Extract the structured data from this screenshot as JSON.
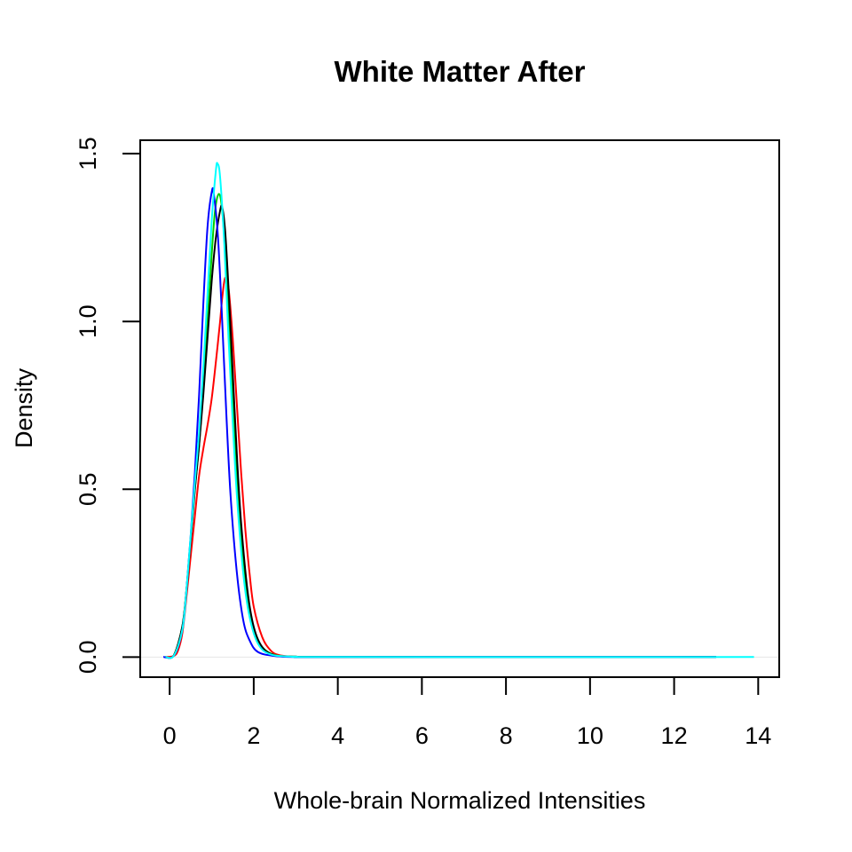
{
  "chart_data": {
    "type": "line",
    "title": "White Matter After",
    "xlabel": "Whole-brain Normalized Intensities",
    "ylabel": "Density",
    "xlim": [
      -0.7,
      14.5
    ],
    "ylim": [
      -0.06,
      1.54
    ],
    "xticks": [
      0,
      2,
      4,
      6,
      8,
      10,
      12,
      14
    ],
    "xtick_labels": [
      "0",
      "2",
      "4",
      "6",
      "8",
      "10",
      "12",
      "14"
    ],
    "yticks": [
      0.0,
      0.5,
      1.0,
      1.5
    ],
    "ytick_labels": [
      "0.0",
      "0.5",
      "1.0",
      "1.5"
    ],
    "grid": false,
    "legend": "none",
    "zero_line_color": "#e6e6e6",
    "series": [
      {
        "color": "#ff0000",
        "points": [
          [
            -0.1,
            0
          ],
          [
            0.1,
            0.003
          ],
          [
            0.2,
            0.02
          ],
          [
            0.3,
            0.07
          ],
          [
            0.4,
            0.18
          ],
          [
            0.5,
            0.3
          ],
          [
            0.6,
            0.42
          ],
          [
            0.7,
            0.54
          ],
          [
            0.8,
            0.62
          ],
          [
            0.9,
            0.69
          ],
          [
            1.0,
            0.77
          ],
          [
            1.1,
            0.88
          ],
          [
            1.2,
            1.0
          ],
          [
            1.25,
            1.07
          ],
          [
            1.32,
            1.13
          ],
          [
            1.4,
            1.1
          ],
          [
            1.5,
            0.95
          ],
          [
            1.6,
            0.75
          ],
          [
            1.7,
            0.55
          ],
          [
            1.8,
            0.38
          ],
          [
            1.9,
            0.25
          ],
          [
            2.0,
            0.15
          ],
          [
            2.2,
            0.06
          ],
          [
            2.4,
            0.02
          ],
          [
            2.6,
            0.006
          ],
          [
            3.0,
            0.001
          ],
          [
            4.0,
            0
          ],
          [
            13.0,
            0
          ]
        ]
      },
      {
        "color": "#00cd00",
        "points": [
          [
            -0.1,
            0
          ],
          [
            0.1,
            0.005
          ],
          [
            0.3,
            0.09
          ],
          [
            0.4,
            0.2
          ],
          [
            0.5,
            0.35
          ],
          [
            0.6,
            0.5
          ],
          [
            0.7,
            0.63
          ],
          [
            0.8,
            0.8
          ],
          [
            0.9,
            1.0
          ],
          [
            1.0,
            1.2
          ],
          [
            1.08,
            1.33
          ],
          [
            1.17,
            1.38
          ],
          [
            1.25,
            1.33
          ],
          [
            1.35,
            1.15
          ],
          [
            1.45,
            0.9
          ],
          [
            1.55,
            0.65
          ],
          [
            1.65,
            0.43
          ],
          [
            1.8,
            0.22
          ],
          [
            2.0,
            0.08
          ],
          [
            2.2,
            0.03
          ],
          [
            2.5,
            0.006
          ],
          [
            3.0,
            0.001
          ],
          [
            4.0,
            0
          ],
          [
            13.0,
            0
          ]
        ]
      },
      {
        "color": "#000000",
        "points": [
          [
            -0.1,
            0
          ],
          [
            0.1,
            0.005
          ],
          [
            0.3,
            0.09
          ],
          [
            0.4,
            0.2
          ],
          [
            0.5,
            0.35
          ],
          [
            0.6,
            0.5
          ],
          [
            0.7,
            0.63
          ],
          [
            0.8,
            0.78
          ],
          [
            0.9,
            0.95
          ],
          [
            1.0,
            1.12
          ],
          [
            1.1,
            1.25
          ],
          [
            1.2,
            1.33
          ],
          [
            1.25,
            1.34
          ],
          [
            1.32,
            1.27
          ],
          [
            1.4,
            1.1
          ],
          [
            1.5,
            0.85
          ],
          [
            1.6,
            0.6
          ],
          [
            1.7,
            0.4
          ],
          [
            1.85,
            0.2
          ],
          [
            2.0,
            0.09
          ],
          [
            2.2,
            0.03
          ],
          [
            2.5,
            0.005
          ],
          [
            3.0,
            0.001
          ],
          [
            4.0,
            0
          ],
          [
            13.0,
            0
          ]
        ]
      },
      {
        "color": "#0000ff",
        "points": [
          [
            -0.15,
            0
          ],
          [
            0.1,
            0.004
          ],
          [
            0.3,
            0.08
          ],
          [
            0.4,
            0.2
          ],
          [
            0.5,
            0.36
          ],
          [
            0.6,
            0.55
          ],
          [
            0.7,
            0.78
          ],
          [
            0.8,
            1.05
          ],
          [
            0.9,
            1.28
          ],
          [
            1.0,
            1.385
          ],
          [
            1.05,
            1.38
          ],
          [
            1.15,
            1.25
          ],
          [
            1.25,
            1.0
          ],
          [
            1.35,
            0.72
          ],
          [
            1.45,
            0.48
          ],
          [
            1.6,
            0.25
          ],
          [
            1.75,
            0.11
          ],
          [
            1.9,
            0.05
          ],
          [
            2.1,
            0.015
          ],
          [
            2.5,
            0.003
          ],
          [
            3.0,
            0
          ],
          [
            4.0,
            0
          ],
          [
            13.0,
            0
          ]
        ]
      },
      {
        "color": "#00ffff",
        "points": [
          [
            -0.1,
            0
          ],
          [
            0.1,
            0.004
          ],
          [
            0.3,
            0.08
          ],
          [
            0.4,
            0.2
          ],
          [
            0.5,
            0.36
          ],
          [
            0.6,
            0.52
          ],
          [
            0.7,
            0.67
          ],
          [
            0.8,
            0.86
          ],
          [
            0.9,
            1.08
          ],
          [
            1.0,
            1.3
          ],
          [
            1.1,
            1.45
          ],
          [
            1.14,
            1.47
          ],
          [
            1.2,
            1.43
          ],
          [
            1.3,
            1.23
          ],
          [
            1.4,
            0.95
          ],
          [
            1.5,
            0.7
          ],
          [
            1.6,
            0.48
          ],
          [
            1.75,
            0.25
          ],
          [
            1.9,
            0.12
          ],
          [
            2.1,
            0.04
          ],
          [
            2.4,
            0.008
          ],
          [
            3.0,
            0.001
          ],
          [
            4.0,
            0
          ],
          [
            13.9,
            0
          ]
        ]
      }
    ]
  }
}
